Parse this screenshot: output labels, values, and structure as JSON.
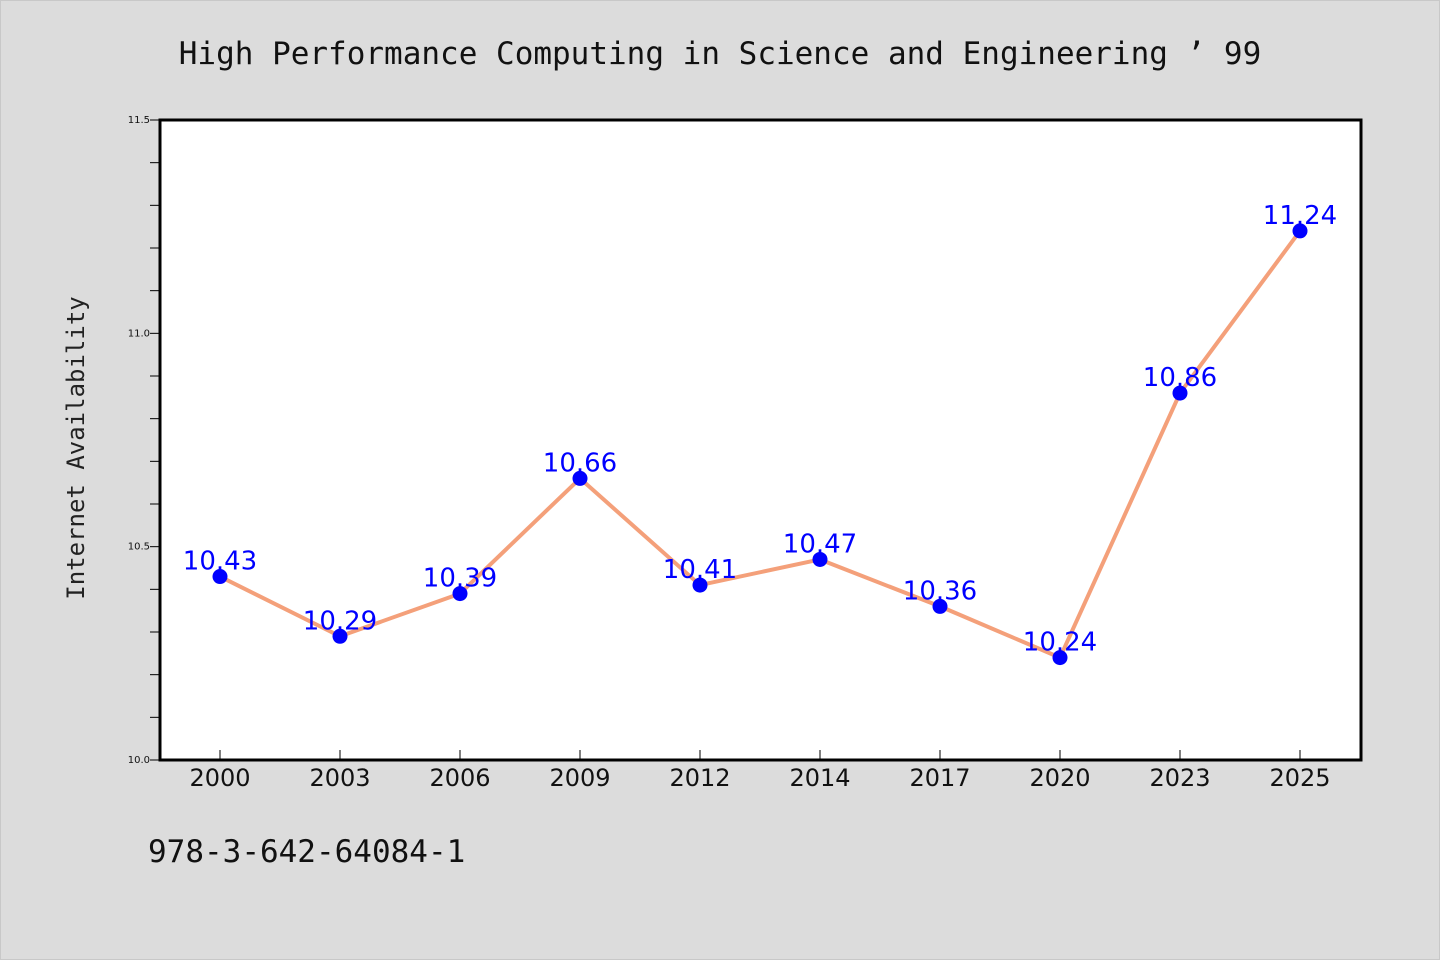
{
  "title": "High Performance Computing in Science and Engineering ’ 99",
  "footer_text": "978-3-642-64084-1",
  "colors": {
    "background": "#dcdcdc",
    "line": "#f4a07a",
    "marker": "#0000ff",
    "data_label": "#0000ff"
  },
  "chart_data": {
    "type": "line",
    "title": "High Performance Computing in Science and Engineering ’ 99",
    "xlabel": "",
    "ylabel": "Internet Availability",
    "categories": [
      "2000",
      "2003",
      "2006",
      "2009",
      "2012",
      "2014",
      "2017",
      "2020",
      "2023",
      "2025"
    ],
    "series": [
      {
        "values": [
          10.43,
          10.29,
          10.39,
          10.66,
          10.41,
          10.47,
          10.36,
          10.24,
          10.86,
          11.24
        ],
        "labels": [
          "10.43",
          "10.29",
          "10.39",
          "10.66",
          "10.41",
          "10.47",
          "10.36",
          "10.24",
          "10.86",
          "11.24"
        ]
      }
    ],
    "ylim": [
      10.0,
      11.5
    ],
    "yticks": [
      10.0,
      10.5,
      11.0,
      11.5
    ],
    "ytick_labels": [
      "10.0",
      "10.5",
      "11.0",
      "11.5"
    ],
    "y_minor_step": 0.1,
    "grid": false,
    "legend": "none"
  }
}
